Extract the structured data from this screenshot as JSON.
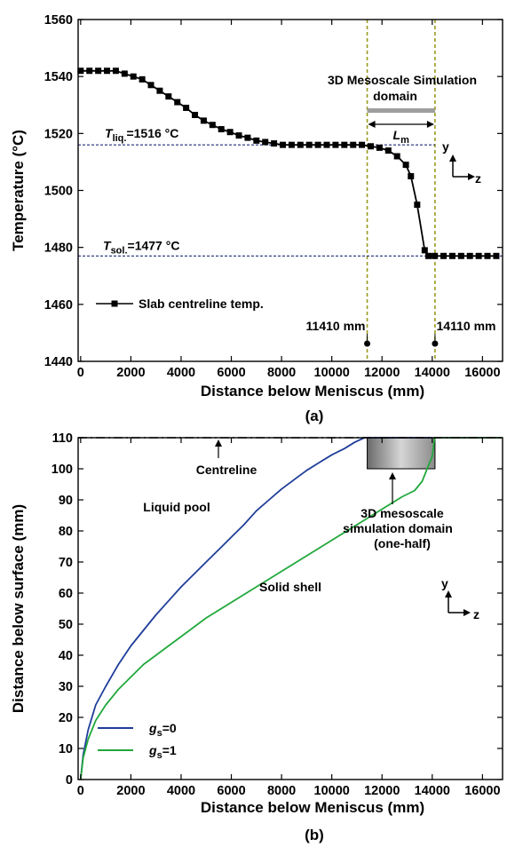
{
  "chart_data": [
    {
      "panel_label": "(a)",
      "type": "line",
      "xlabel": "Distance below Meniscus (mm)",
      "ylabel": "Temperature   (°C)",
      "xlim": [
        -100,
        16800
      ],
      "ylim": [
        1440,
        1560
      ],
      "xticks": [
        "0",
        "2000",
        "4000",
        "6000",
        "8000",
        "10000",
        "12000",
        "14000",
        "16000"
      ],
      "yticks": [
        "1440",
        "1460",
        "1480",
        "1500",
        "1520",
        "1540",
        "1560"
      ],
      "series": [
        {
          "name": "Slab centreline temp.",
          "color": "#000000",
          "marker": "square",
          "x": [
            0,
            350,
            700,
            1050,
            1400,
            1750,
            2100,
            2450,
            2800,
            3150,
            3500,
            3850,
            4200,
            4550,
            4900,
            5250,
            5600,
            5950,
            6300,
            6650,
            7000,
            7350,
            7700,
            8050,
            8400,
            8750,
            9100,
            9450,
            9800,
            10150,
            10500,
            10850,
            11200,
            11550,
            11900,
            12250,
            12600,
            12950,
            13150,
            13400,
            13700,
            13850,
            14100,
            14450,
            14800,
            15150,
            15500,
            15850,
            16200,
            16550
          ],
          "y": [
            1542,
            1542,
            1542,
            1542,
            1542,
            1541,
            1540,
            1539,
            1537,
            1535,
            1533,
            1531,
            1529,
            1526.5,
            1524.5,
            1523,
            1521.5,
            1520.5,
            1519.3,
            1518.5,
            1517.5,
            1517,
            1516.5,
            1516,
            1516,
            1516,
            1516,
            1516,
            1516,
            1516,
            1516,
            1516,
            1516,
            1515.5,
            1515,
            1514,
            1512,
            1509,
            1505,
            1495,
            1479,
            1477,
            1477,
            1477,
            1477,
            1477,
            1477,
            1477,
            1477,
            1477
          ]
        }
      ],
      "legend_position": "bottom-left",
      "annotations": {
        "tliq_prefix": "T",
        "tliq_sub": "liq.",
        "tliq_value": "=1516 °C",
        "tliq_y": 1516,
        "tsol_prefix": "T",
        "tsol_sub": "sol.",
        "tsol_value": "=1477 °C",
        "tsol_y": 1477,
        "domain_line1": "3D Mesoscale Simulation",
        "domain_line2": "domain",
        "lm_main": "L",
        "lm_sub": "m",
        "start_x": 11410,
        "end_x": 14110,
        "start_label": "11410 mm",
        "end_label": "14110 mm",
        "axis_y": "y",
        "axis_z": "z",
        "bounds_color": "#9A9A20",
        "dash_color": "#1E2A78"
      },
      "grid": false
    },
    {
      "panel_label": "(b)",
      "type": "line",
      "xlabel": "Distance below Meniscus (mm)",
      "ylabel": "Distance below surface (mm)",
      "xlim": [
        -100,
        16800
      ],
      "ylim": [
        0,
        110
      ],
      "xticks": [
        "0",
        "2000",
        "4000",
        "6000",
        "8000",
        "10000",
        "12000",
        "14000",
        "16000"
      ],
      "yticks": [
        "0",
        "10",
        "20",
        "30",
        "40",
        "50",
        "60",
        "70",
        "80",
        "90",
        "100",
        "110"
      ],
      "series": [
        {
          "name": "g",
          "name_sub": "s",
          "name_suffix": "=0",
          "color": "#1F3E9A",
          "x": [
            0,
            100,
            300,
            600,
            1000,
            1500,
            2000,
            2500,
            3000,
            3500,
            4000,
            4500,
            5000,
            5500,
            6000,
            6500,
            7000,
            7500,
            8000,
            8500,
            9000,
            9500,
            10000,
            10500,
            10900,
            11300,
            14000
          ],
          "y": [
            0,
            8,
            16,
            24,
            30,
            37,
            43,
            48,
            53,
            57.5,
            62,
            66,
            70,
            74,
            78,
            82,
            86.5,
            90,
            93.5,
            96.5,
            99.5,
            102,
            104.5,
            106.5,
            108.5,
            110,
            110
          ]
        },
        {
          "name": "g",
          "name_sub": "s",
          "name_suffix": "=1",
          "color": "#22A83C",
          "x": [
            0,
            100,
            300,
            600,
            1000,
            1500,
            2000,
            2500,
            3000,
            3500,
            4000,
            5000,
            6000,
            7000,
            8000,
            9000,
            10000,
            11000,
            12000,
            12800,
            13300,
            13600,
            13800,
            14000,
            14100,
            16800
          ],
          "y": [
            0,
            7,
            13,
            19,
            24,
            29,
            33,
            37,
            40,
            43,
            46,
            52,
            57,
            62,
            67,
            72,
            77,
            82,
            87,
            91,
            93,
            96,
            100,
            104,
            110,
            110
          ]
        }
      ],
      "legend_position": "bottom-left",
      "annotations": {
        "centreline": "Centreline",
        "liquid_pool": "Liquid pool",
        "solid_shell": "Solid shell",
        "domain_line1": "3D mesoscale",
        "domain_line2": "simulation domain",
        "domain_line3": "(one-half)",
        "domain_x0": 11410,
        "domain_x1": 14110,
        "domain_y0": 100,
        "domain_y1": 110,
        "axis_y": "y",
        "axis_z": "z"
      },
      "grid": false
    }
  ]
}
